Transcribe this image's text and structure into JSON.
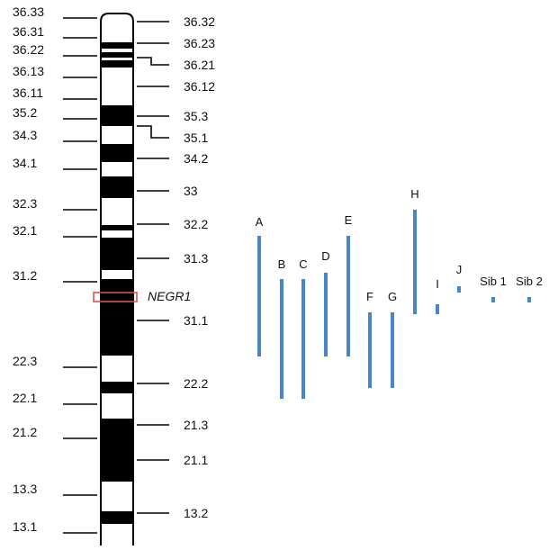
{
  "figure": {
    "colors": {
      "band_dark": "#000000",
      "band_light": "#ffffff",
      "outline": "#000000",
      "gene_box": "#d9534f",
      "deletion": "#4a86c5"
    },
    "gene_label": "NEGR1",
    "band_order_top_to_bottom": [
      "36.33",
      "36.32",
      "36.31",
      "36.23",
      "36.22",
      "36.21",
      "36.13",
      "36.12",
      "36.11",
      "35.3",
      "35.2",
      "35.1",
      "34.3",
      "34.2",
      "34.1",
      "33",
      "32.3",
      "32.2",
      "32.1",
      "31.3",
      "31.2",
      "31.1",
      "22.3",
      "22.2",
      "22.1",
      "21.3",
      "21.2",
      "21.1",
      "13.3",
      "13.2",
      "13.1"
    ],
    "left_labels": [
      "36.33",
      "36.31",
      "36.22",
      "36.13",
      "36.11",
      "35.2",
      "34.3",
      "34.1",
      "32.3",
      "32.1",
      "31.2",
      "22.3",
      "22.1",
      "21.2",
      "13.3",
      "13.1"
    ],
    "right_labels": [
      "36.32",
      "36.23",
      "36.21",
      "36.12",
      "35.3",
      "35.1",
      "34.2",
      "33",
      "32.2",
      "31.3",
      "31.1",
      "22.2",
      "21.3",
      "21.1",
      "13.2"
    ],
    "deletions": [
      {
        "label": "A",
        "from_band": "32.1",
        "to_band": "22.3"
      },
      {
        "label": "B",
        "from_band": "31.2",
        "to_band": "22.2"
      },
      {
        "label": "C",
        "from_band": "31.2",
        "to_band": "22.2"
      },
      {
        "label": "D",
        "from_band": "31.2",
        "to_band": "22.3"
      },
      {
        "label": "E",
        "from_band": "32.1",
        "to_band": "22.3"
      },
      {
        "label": "F",
        "from_band": "31.1",
        "to_band": "22.2"
      },
      {
        "label": "G",
        "from_band": "31.1",
        "to_band": "22.2"
      },
      {
        "label": "H",
        "from_band": "32.2",
        "to_band": "31.1"
      },
      {
        "label": "I",
        "from_band": "31.1",
        "to_band": "31.1"
      },
      {
        "label": "J",
        "from_band": "31.2",
        "to_band": "31.2"
      },
      {
        "label": "Sib 1",
        "from_band": "31.1",
        "to_band": "31.1"
      },
      {
        "label": "Sib 2",
        "from_band": "31.1",
        "to_band": "31.1"
      }
    ]
  }
}
